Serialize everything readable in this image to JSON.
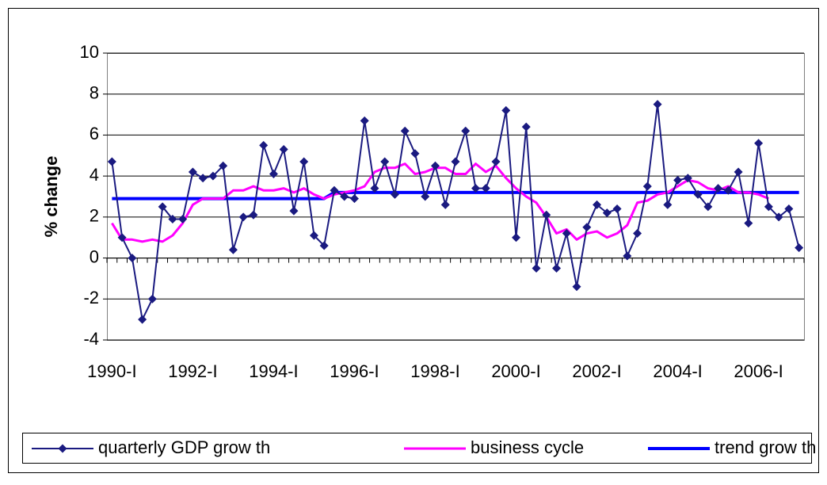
{
  "chart_data": {
    "type": "line",
    "ylabel": "% change",
    "categories": [
      "1990-I",
      null,
      null,
      null,
      null,
      null,
      null,
      null,
      "1992-I",
      null,
      null,
      null,
      null,
      null,
      null,
      null,
      "1994-I",
      null,
      null,
      null,
      null,
      null,
      null,
      null,
      "1996-I",
      null,
      null,
      null,
      null,
      null,
      null,
      null,
      "1998-I",
      null,
      null,
      null,
      null,
      null,
      null,
      null,
      "2000-I",
      null,
      null,
      null,
      null,
      null,
      null,
      null,
      "2002-I",
      null,
      null,
      null,
      null,
      null,
      null,
      null,
      "2004-I",
      null,
      null,
      null,
      null,
      null,
      null,
      null,
      "2006-I",
      null,
      null,
      null,
      null
    ],
    "series": [
      {
        "name": "quarterly GDP grow th",
        "color": "#1a1a80",
        "marker": "diamond",
        "width": 2,
        "values": [
          4.7,
          1.0,
          0.0,
          -3.0,
          -2.0,
          2.5,
          1.9,
          1.9,
          4.2,
          3.9,
          4.0,
          4.5,
          0.4,
          2.0,
          2.1,
          5.5,
          4.1,
          5.3,
          2.3,
          4.7,
          1.1,
          0.6,
          3.3,
          3.0,
          2.9,
          6.7,
          3.4,
          4.7,
          3.1,
          6.2,
          5.1,
          3.0,
          4.5,
          2.6,
          4.7,
          6.2,
          3.4,
          3.4,
          4.7,
          7.2,
          1.0,
          6.4,
          -0.5,
          2.1,
          -0.5,
          1.2,
          -1.4,
          1.5,
          2.6,
          2.2,
          2.4,
          0.1,
          1.2,
          3.5,
          7.5,
          2.6,
          3.8,
          3.9,
          3.1,
          2.5,
          3.4,
          3.3,
          4.2,
          1.7,
          5.6,
          2.5,
          2.0,
          2.4,
          0.5
        ]
      },
      {
        "name": "business cycle",
        "color": "#ff00ff",
        "width": 3,
        "values": [
          1.7,
          0.9,
          0.9,
          0.8,
          0.9,
          0.8,
          1.1,
          1.7,
          2.6,
          2.9,
          2.9,
          2.9,
          3.3,
          3.3,
          3.5,
          3.3,
          3.3,
          3.4,
          3.2,
          3.4,
          3.1,
          2.9,
          3.1,
          3.2,
          3.3,
          3.5,
          4.2,
          4.4,
          4.4,
          4.6,
          4.1,
          4.2,
          4.4,
          4.4,
          4.1,
          4.1,
          4.6,
          4.2,
          4.5,
          3.9,
          3.4,
          3.0,
          2.7,
          2.0,
          1.2,
          1.4,
          0.9,
          1.2,
          1.3,
          1.0,
          1.2,
          1.6,
          2.7,
          2.8,
          3.1,
          3.2,
          3.5,
          3.8,
          3.7,
          3.4,
          3.3,
          3.5,
          3.2,
          3.2,
          3.1,
          2.9,
          null,
          null,
          null
        ]
      },
      {
        "name": "trend grow th",
        "color": "#0000ff",
        "width": 4,
        "values": [
          2.9,
          2.9,
          2.9,
          2.9,
          2.9,
          2.9,
          2.9,
          2.9,
          2.9,
          2.9,
          2.9,
          2.9,
          2.9,
          2.9,
          2.9,
          2.9,
          2.9,
          2.9,
          2.9,
          2.9,
          2.9,
          2.9,
          3.2,
          3.2,
          3.2,
          3.2,
          3.2,
          3.2,
          3.2,
          3.2,
          3.2,
          3.2,
          3.2,
          3.2,
          3.2,
          3.2,
          3.2,
          3.2,
          3.2,
          3.2,
          3.2,
          3.2,
          3.2,
          3.2,
          3.2,
          3.2,
          3.2,
          3.2,
          3.2,
          3.2,
          3.2,
          3.2,
          3.2,
          3.2,
          3.2,
          3.2,
          3.2,
          3.2,
          3.2,
          3.2,
          3.2,
          3.2,
          3.2,
          3.2,
          3.2,
          3.2,
          3.2,
          3.2,
          3.2
        ]
      }
    ],
    "ylim": [
      -4,
      10
    ],
    "yticks": [
      -4,
      -2,
      0,
      2,
      4,
      6,
      8,
      10
    ],
    "grid": true
  }
}
